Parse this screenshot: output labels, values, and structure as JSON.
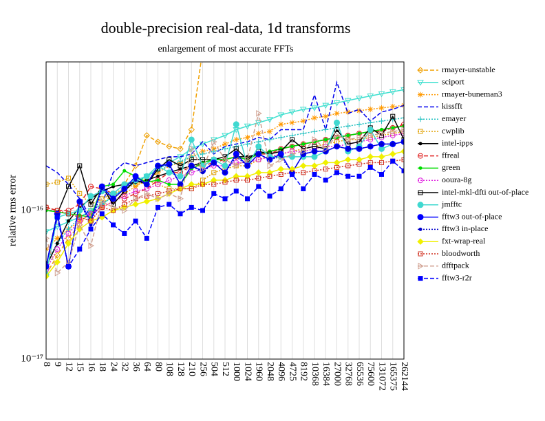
{
  "chart_data": {
    "type": "line",
    "title": "double-precision real-data, 1d transforms",
    "subtitle": "enlargement of most accurate FFTs",
    "y_label": "relative rms error",
    "y_scale": "log",
    "grid": true,
    "legend": "right",
    "ylim": [
      1e-17,
      1e-15
    ],
    "yticks": [
      {
        "value": 1e-17,
        "label": "10⁻¹⁷"
      },
      {
        "value": 1e-16,
        "label": "10⁻¹⁶"
      }
    ],
    "categories": [
      "8",
      "9",
      "12",
      "15",
      "16",
      "18",
      "24",
      "32",
      "36",
      "64",
      "80",
      "108",
      "128",
      "210",
      "256",
      "504",
      "512",
      "1000",
      "1024",
      "1960",
      "2048",
      "4096",
      "4725",
      "8192",
      "10368",
      "16384",
      "27000",
      "32768",
      "65536",
      "75600",
      "131072",
      "165375",
      "262144"
    ],
    "series": [
      {
        "name": "rmayer-unstable",
        "color": "#f0a000",
        "dash": "dashed",
        "marker": "diamond",
        "values": [
          3.7e-17,
          5e-17,
          6.5e-17,
          8e-17,
          1e-16,
          1.1e-16,
          1.3e-16,
          1.5e-16,
          2e-16,
          3.2e-16,
          2.9e-16,
          2.7e-16,
          2.6e-16,
          3.5e-16,
          1.2e-15,
          null,
          null,
          null,
          null,
          null,
          null,
          null,
          null,
          null,
          null,
          null,
          null,
          null,
          null,
          null,
          null,
          null,
          null
        ]
      },
      {
        "name": "sciport",
        "color": "#40e0d0",
        "dash": "solid",
        "marker": "tridown",
        "values": [
          7.2e-17,
          7.8e-17,
          8.4e-17,
          9e-17,
          1e-16,
          1.1e-16,
          1.25e-16,
          1.4e-16,
          1.55e-16,
          1.7e-16,
          1.9e-16,
          2.1e-16,
          2.3e-16,
          2.6e-16,
          2.8e-16,
          3e-16,
          3.2e-16,
          3.5e-16,
          3.7e-16,
          3.9e-16,
          4.1e-16,
          4.4e-16,
          4.6e-16,
          4.8e-16,
          4.9e-16,
          5.1e-16,
          5.3e-16,
          5.5e-16,
          5.7e-16,
          5.9e-16,
          6.1e-16,
          6.3e-16,
          6.5e-16
        ]
      },
      {
        "name": "rmayer-buneman3",
        "color": "#ff9900",
        "dash": "dotted",
        "marker": "star",
        "values": [
          5.5e-17,
          6.5e-17,
          7.5e-17,
          8.5e-17,
          9.5e-17,
          1.05e-16,
          1.15e-16,
          1.3e-16,
          1.45e-16,
          1.6e-16,
          1.8e-16,
          2e-16,
          2.1e-16,
          2.3e-16,
          2.5e-16,
          2.6e-16,
          2.8e-16,
          3e-16,
          3.1e-16,
          3.3e-16,
          3.4e-16,
          3.8e-16,
          3.9e-16,
          4e-16,
          4.2e-16,
          4.3e-16,
          4.5e-16,
          4.6e-16,
          4.7e-16,
          4.8e-16,
          4.9e-16,
          5e-16,
          5.1e-16
        ]
      },
      {
        "name": "kissfft",
        "color": "#0000ee",
        "dash": "dashed",
        "marker": "none",
        "values": [
          2e-16,
          1.8e-16,
          1.5e-16,
          1.2e-16,
          9e-17,
          1.1e-16,
          1.8e-16,
          2.1e-16,
          2e-16,
          2.1e-16,
          2.2e-16,
          2.3e-16,
          2.3e-16,
          2.4e-16,
          2.9e-16,
          2.4e-16,
          2.7e-16,
          2.8e-16,
          2.9e-16,
          3.1e-16,
          3e-16,
          3.5e-16,
          3.5e-16,
          3.5e-16,
          6e-16,
          3.5e-16,
          7.3e-16,
          4.5e-16,
          4.8e-16,
          4e-16,
          4.6e-16,
          4.8e-16,
          5.1e-16
        ]
      },
      {
        "name": "emayer",
        "color": "#20c0c0",
        "dash": "dotted",
        "marker": "plus",
        "values": [
          4.5e-17,
          6e-17,
          7.5e-17,
          9e-17,
          1e-16,
          1.1e-16,
          1.25e-16,
          1.4e-16,
          1.55e-16,
          1.7e-16,
          1.85e-16,
          2e-16,
          2.15e-16,
          2.3e-16,
          2.4e-16,
          2.5e-16,
          2.6e-16,
          2.7e-16,
          2.8e-16,
          2.9e-16,
          3e-16,
          3.1e-16,
          3.2e-16,
          3.3e-16,
          3.4e-16,
          3.5e-16,
          3.6e-16,
          3.7e-16,
          3.8e-16,
          3.9e-16,
          4e-16,
          4.1e-16,
          4.2e-16
        ]
      },
      {
        "name": "cwplib",
        "color": "#e0a000",
        "dash": "dotted",
        "marker": "square",
        "values": [
          1.5e-16,
          1.55e-16,
          1.65e-16,
          1.3e-16,
          1.1e-16,
          1.2e-16,
          1.3e-16,
          1.4e-16,
          1.5e-16,
          1.6e-16,
          1.5e-16,
          1.4e-16,
          1.4e-16,
          1.4e-16,
          1.6e-16,
          1.8e-16,
          1.9e-16,
          2e-16,
          2e-16,
          2.2e-16,
          2.3e-16,
          2.4e-16,
          2.5e-16,
          2.6e-16,
          2.7e-16,
          2.8e-16,
          2.9e-16,
          3e-16,
          3e-16,
          3.1e-16,
          3.2e-16,
          3.3e-16,
          3.4e-16
        ]
      },
      {
        "name": "intel-ipps",
        "color": "#000000",
        "dash": "solid",
        "marker": "dot",
        "values": [
          4.2e-17,
          6e-17,
          8.5e-17,
          1.05e-16,
          1.2e-16,
          1.35e-16,
          1.45e-16,
          1.5e-16,
          1.55e-16,
          1.6e-16,
          1.7e-16,
          1.8e-16,
          1.9e-16,
          2e-16,
          2.1e-16,
          2.2e-16,
          2.2e-16,
          2.3e-16,
          2.3e-16,
          2.4e-16,
          2.5e-16,
          2.6e-16,
          2.7e-16,
          2.8e-16,
          2.9e-16,
          3e-16,
          3.1e-16,
          3.2e-16,
          3.3e-16,
          3.4e-16,
          3.5e-16,
          3.6e-16,
          3.7e-16
        ]
      },
      {
        "name": "ffreal",
        "color": "#e02020",
        "dash": "dashed",
        "marker": "circle",
        "values": [
          1.05e-16,
          1e-16,
          1e-16,
          1.1e-16,
          1.45e-16,
          1.4e-16,
          1.3e-16,
          1.2e-16,
          1.3e-16,
          1.4e-16,
          1.6e-16,
          1.8e-16,
          1.8e-16,
          2e-16,
          2e-16,
          2.1e-16,
          2.2e-16,
          2.3e-16,
          2.2e-16,
          2.4e-16,
          2.4e-16,
          2.6e-16,
          2.7e-16,
          2.8e-16,
          2.9e-16,
          3e-16,
          3.1e-16,
          3.2e-16,
          3.3e-16,
          3.4e-16,
          3.4e-16,
          3.6e-16,
          3.8e-16
        ]
      },
      {
        "name": "green",
        "color": "#00dd00",
        "dash": "solid",
        "marker": "dot",
        "values": [
          1e-16,
          9.8e-17,
          9.5e-17,
          9.3e-17,
          9e-17,
          1.45e-16,
          1.5e-16,
          1.85e-16,
          1.7e-16,
          1.55e-16,
          1.6e-16,
          1.5e-16,
          1.5e-16,
          1.9e-16,
          2.1e-16,
          2.2e-16,
          2.2e-16,
          2.3e-16,
          2.2e-16,
          2.4e-16,
          2.5e-16,
          2.6e-16,
          2.7e-16,
          2.8e-16,
          2.9e-16,
          3e-16,
          3.1e-16,
          3.2e-16,
          3.3e-16,
          3.4e-16,
          3.5e-16,
          3.6e-16,
          3.7e-16
        ]
      },
      {
        "name": "ooura-8g",
        "color": "#e020e0",
        "dash": "dotted",
        "marker": "circle",
        "values": [
          4e-17,
          5.5e-17,
          7e-17,
          8.5e-17,
          9.5e-17,
          1.05e-16,
          1.15e-16,
          1.25e-16,
          1.35e-16,
          1.4e-16,
          1.5e-16,
          1.6e-16,
          1.7e-16,
          1.8e-16,
          1.9e-16,
          2e-16,
          2e-16,
          2.1e-16,
          2.1e-16,
          2.2e-16,
          2.3e-16,
          2.4e-16,
          2.5e-16,
          2.5e-16,
          2.6e-16,
          2.7e-16,
          2.7e-16,
          2.8e-16,
          2.9e-16,
          3e-16,
          3.1e-16,
          3.2e-16,
          3.3e-16
        ]
      },
      {
        "name": "intel-mkl-dfti out-of-place",
        "color": "#000000",
        "dash": "solid",
        "marker": "square",
        "values": [
          4.2e-17,
          9.5e-17,
          1.45e-16,
          2e-16,
          1.1e-16,
          1.45e-16,
          1.1e-16,
          1.35e-16,
          1.6e-16,
          1.5e-16,
          1.9e-16,
          2.2e-16,
          2e-16,
          2.2e-16,
          2.2e-16,
          2.2e-16,
          2.3e-16,
          2.6e-16,
          2.2e-16,
          2.5e-16,
          2.4e-16,
          2.5e-16,
          3e-16,
          2.6e-16,
          2.7e-16,
          2.6e-16,
          3.5e-16,
          2.8e-16,
          2.9e-16,
          3.6e-16,
          3.2e-16,
          4.3e-16,
          3e-16
        ]
      },
      {
        "name": "jmfftc",
        "color": "#40d8d0",
        "dash": "solid",
        "marker": "fcircle",
        "values": [
          3.7e-17,
          9e-17,
          9.5e-17,
          1e-16,
          1.25e-16,
          1.35e-16,
          1.3e-16,
          1.5e-16,
          1.6e-16,
          1.7e-16,
          2e-16,
          1.8e-16,
          1.7e-16,
          3e-16,
          2e-16,
          2.2e-16,
          2e-16,
          3.8e-16,
          2e-16,
          2.7e-16,
          2.3e-16,
          2.3e-16,
          2.3e-16,
          2.3e-16,
          2.3e-16,
          2.5e-16,
          3.9e-16,
          2.5e-16,
          2.7e-16,
          3.5e-16,
          2.6e-16,
          2.8e-16,
          2.9e-16
        ]
      },
      {
        "name": "fftw3 out-of-place",
        "color": "#0000ff",
        "dash": "solid",
        "marker": "fcircle",
        "values": [
          4.2e-17,
          9.5e-17,
          4.2e-17,
          1.15e-16,
          8.5e-17,
          1.45e-16,
          1.2e-16,
          1.4e-16,
          1.7e-16,
          1.5e-16,
          2e-16,
          2.05e-16,
          1.5e-16,
          2e-16,
          1.85e-16,
          2.1e-16,
          1.8e-16,
          2.4e-16,
          2e-16,
          2.4e-16,
          2.2e-16,
          2.4e-16,
          1.8e-16,
          2.4e-16,
          2.5e-16,
          2.5e-16,
          2.7e-16,
          2.6e-16,
          2.6e-16,
          2.7e-16,
          2.8e-16,
          2.8e-16,
          2.9e-16
        ]
      },
      {
        "name": "fftw3 in-place",
        "color": "#0000cc",
        "dash": "dotted",
        "marker": "dot",
        "values": [
          4.2e-17,
          9.5e-17,
          4.2e-17,
          1.15e-16,
          8e-17,
          1.4e-16,
          1.2e-16,
          1.4e-16,
          1.6e-16,
          1.5e-16,
          2e-16,
          2e-16,
          1.5e-16,
          2e-16,
          1.8e-16,
          2.1e-16,
          1.8e-16,
          2.3e-16,
          2e-16,
          2.4e-16,
          2.2e-16,
          2.3e-16,
          1.8e-16,
          2.4e-16,
          2.5e-16,
          2.5e-16,
          2.7e-16,
          2.6e-16,
          2.6e-16,
          2.7e-16,
          2.8e-16,
          2.8e-16,
          2.9e-16
        ]
      },
      {
        "name": "fxt-wrap-real",
        "color": "#f0f000",
        "dash": "solid",
        "marker": "fdiamond",
        "values": [
          3.6e-17,
          4.5e-17,
          6e-17,
          7.5e-17,
          8.5e-17,
          9e-17,
          1e-16,
          1.05e-16,
          1.1e-16,
          1.15e-16,
          1.2e-16,
          1.3e-16,
          1.4e-16,
          1.5e-16,
          1.5e-16,
          1.6e-16,
          1.6e-16,
          1.7e-16,
          1.7e-16,
          1.8e-16,
          1.8e-16,
          1.9e-16,
          1.9e-16,
          2e-16,
          2e-16,
          2.1e-16,
          2.1e-16,
          2.2e-16,
          2.2e-16,
          2.3e-16,
          2.3e-16,
          2.4e-16,
          2.5e-16
        ]
      },
      {
        "name": "bloodworth",
        "color": "#d03020",
        "dash": "dotted",
        "marker": "square",
        "values": [
          1.05e-16,
          1e-16,
          9.5e-17,
          9e-17,
          8.5e-17,
          1.05e-16,
          1e-16,
          1.1e-16,
          1.2e-16,
          1.25e-16,
          1.3e-16,
          1.35e-16,
          1.4e-16,
          1.4e-16,
          1.5e-16,
          1.5e-16,
          1.55e-16,
          1.6e-16,
          1.6e-16,
          1.65e-16,
          1.7e-16,
          1.75e-16,
          1.8e-16,
          1.8e-16,
          1.85e-16,
          1.9e-16,
          1.95e-16,
          2e-16,
          2.05e-16,
          2.1e-16,
          2.1e-16,
          2.15e-16,
          2.2e-16
        ]
      },
      {
        "name": "dfftpack",
        "color": "#d0a090",
        "dash": "dashed",
        "marker": "triright",
        "values": [
          6.5e-17,
          3.8e-17,
          4.5e-17,
          8e-17,
          5.8e-17,
          1.15e-16,
          1.05e-16,
          1e-16,
          1.2e-16,
          1.3e-16,
          1.2e-16,
          1.3e-16,
          1.2e-16,
          2.6e-16,
          1.9e-16,
          2.9e-16,
          2.2e-16,
          2e-16,
          2.2e-16,
          4.5e-16,
          2e-16,
          2.2e-16,
          2.4e-16,
          2.5e-16,
          3e-16,
          2.6e-16,
          3.2e-16,
          3e-16,
          3.1e-16,
          3.2e-16,
          3.3e-16,
          3.4e-16,
          3.5e-16
        ]
      },
      {
        "name": "fftw3-r2r",
        "color": "#0000ff",
        "dash": "dashed",
        "marker": "fsquare",
        "values": [
          4.2e-17,
          9e-17,
          4.2e-17,
          5.5e-17,
          7.5e-17,
          9.5e-17,
          8e-17,
          7e-17,
          8.5e-17,
          6.5e-17,
          1.05e-16,
          1.1e-16,
          9.5e-17,
          1.05e-16,
          1e-16,
          1.3e-16,
          1.2e-16,
          1.35e-16,
          1.2e-16,
          1.45e-16,
          1.25e-16,
          1.4e-16,
          1.75e-16,
          1.4e-16,
          1.75e-16,
          1.6e-16,
          1.8e-16,
          1.7e-16,
          1.7e-16,
          1.95e-16,
          1.75e-16,
          2.15e-16,
          1.85e-16
        ]
      }
    ]
  }
}
